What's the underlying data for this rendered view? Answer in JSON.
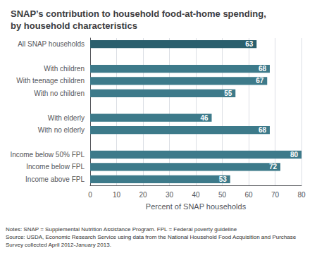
{
  "chart_data": {
    "type": "bar",
    "orientation": "horizontal",
    "title": "SNAP’s contribution to household food-at-home spending,\nby household characteristics",
    "categories": [
      "All SNAP households",
      null,
      "With children",
      "With teenage children",
      "With no children",
      null,
      "With elderly",
      "With no elderly",
      null,
      "Income below 50% FPL",
      "Income below FPL",
      "Income above FPL"
    ],
    "values": [
      63,
      null,
      68,
      67,
      55,
      null,
      46,
      68,
      null,
      80,
      72,
      53
    ],
    "colors": [
      "#2a5f6d",
      null,
      "#3d7a8a",
      "#3d7a8a",
      "#3d7a8a",
      null,
      "#3d7a8a",
      "#3d7a8a",
      null,
      "#3d7a8a",
      "#3d7a8a",
      "#3d7a8a"
    ],
    "xlabel": "Percent of SNAP households",
    "xlim": [
      0,
      80
    ],
    "xticks": [
      0,
      10,
      20,
      30,
      40,
      50,
      60,
      70,
      80
    ],
    "grid": true,
    "data_labels": true,
    "annotations": [
      "Notes: SNAP = Supplemental Nutrition Assistance Program. FPL = Federal poverty guideline\nSource: USDA, Economic Research Service using data from the National Household Food Acquisition and Purchase\nSurvey collected April 2012-January 2013."
    ]
  }
}
